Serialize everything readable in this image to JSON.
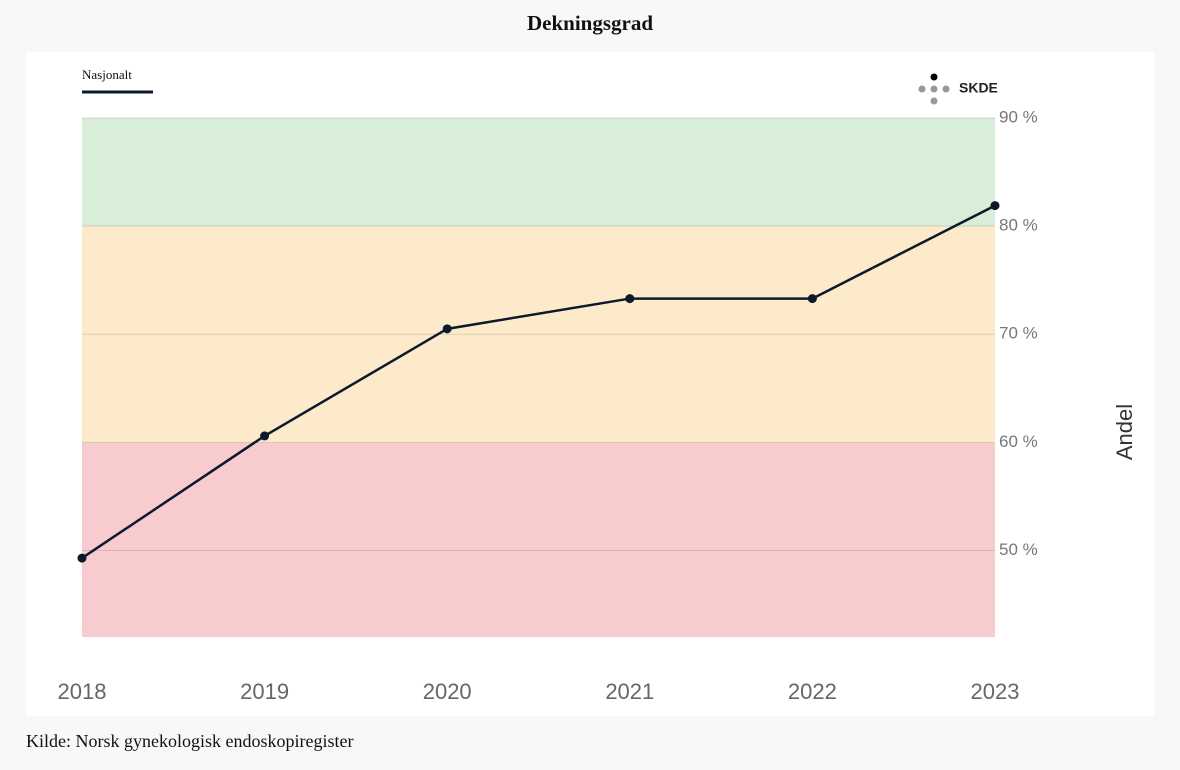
{
  "chart_data": {
    "type": "line",
    "title": "Dekningsgrad",
    "categories": [
      "2018",
      "2019",
      "2020",
      "2021",
      "2022",
      "2023"
    ],
    "series": [
      {
        "name": "Nasjonalt",
        "color": "#0b1a2b",
        "values": [
          49.3,
          60.6,
          70.5,
          73.3,
          73.3,
          81.9
        ]
      }
    ],
    "ylim": [
      42,
      90
    ],
    "yticks": [
      {
        "value": 50,
        "label": "50 %"
      },
      {
        "value": 60,
        "label": "60 %"
      },
      {
        "value": 70,
        "label": "70 %"
      },
      {
        "value": 80,
        "label": "80 %"
      },
      {
        "value": 90,
        "label": "90 %"
      }
    ],
    "y_label": "Andel",
    "grid": true,
    "bands": [
      {
        "from": 80,
        "to": 90,
        "color": "#d8eed8"
      },
      {
        "from": 60,
        "to": 80,
        "color": "#fdeacb"
      },
      {
        "from": 42,
        "to": 60,
        "color": "#f8cccf"
      }
    ],
    "logo": "SKDE",
    "source": "Kilde: Norsk gynekologisk endoskopiregister"
  }
}
